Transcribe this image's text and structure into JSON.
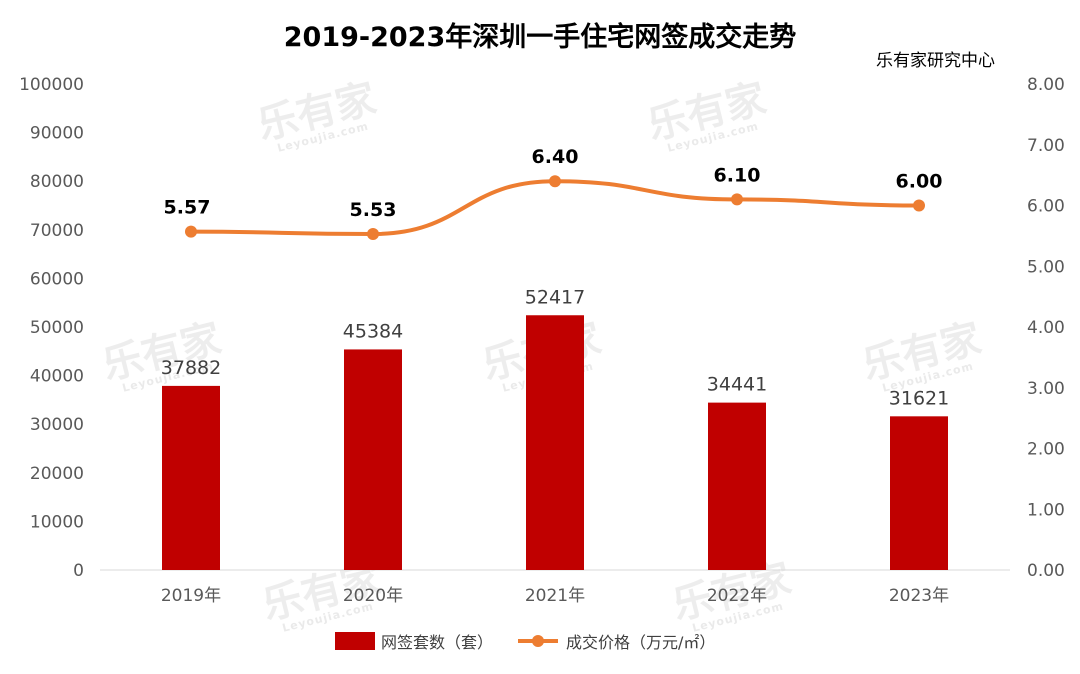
{
  "chart_data": {
    "type": "bar",
    "title": "2019-2023年深圳一手住宅网签成交走势",
    "source": "乐有家研究中心",
    "watermark": {
      "brand": "乐有家",
      "site": "Leyoujia.com"
    },
    "categories": [
      "2019年",
      "2020年",
      "2021年",
      "2022年",
      "2023年"
    ],
    "series": [
      {
        "name": "网签套数（套）",
        "type": "bar",
        "axis": "left",
        "color": "#c00000",
        "values": [
          37882,
          45384,
          52417,
          34441,
          31621
        ]
      },
      {
        "name": "成交价格（万元/㎡）",
        "type": "line",
        "axis": "right",
        "color": "#ed7d31",
        "values": [
          5.57,
          5.53,
          6.4,
          6.1,
          6.0
        ]
      }
    ],
    "y_left": {
      "min": 0,
      "max": 100000,
      "step": 10000,
      "ticks": [
        "0",
        "10000",
        "20000",
        "30000",
        "40000",
        "50000",
        "60000",
        "70000",
        "80000",
        "90000",
        "100000"
      ]
    },
    "y_right": {
      "min": 0,
      "max": 8,
      "step": 1,
      "ticks": [
        "0.00",
        "1.00",
        "2.00",
        "3.00",
        "4.00",
        "5.00",
        "6.00",
        "7.00",
        "8.00"
      ]
    },
    "bar_labels": [
      "37882",
      "45384",
      "52417",
      "34441",
      "31621"
    ],
    "line_labels": [
      "5.57",
      "5.53",
      "6.40",
      "6.10",
      "6.00"
    ],
    "legend": {
      "position": "bottom"
    },
    "grid": false
  }
}
